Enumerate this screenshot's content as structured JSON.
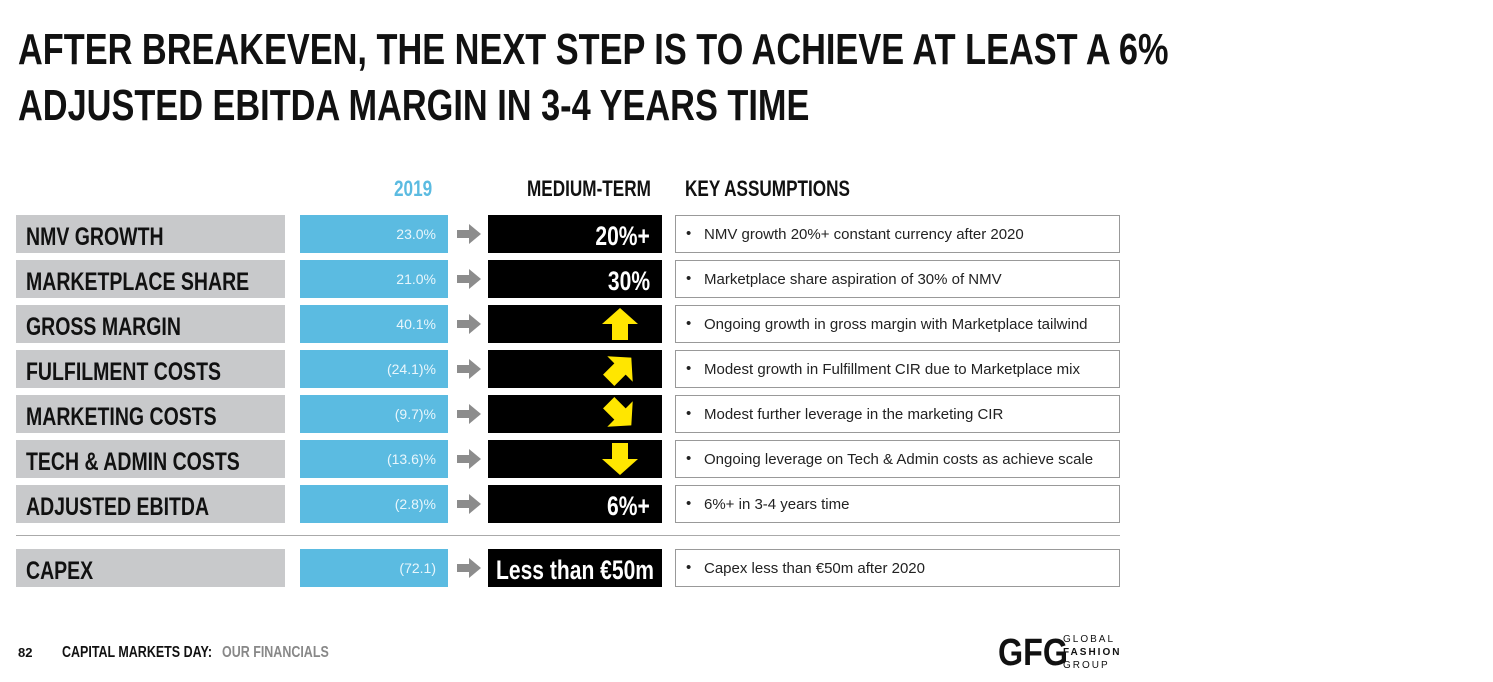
{
  "header": {
    "title_lines": [
      "AFTER BREAKEVEN, THE NEXT STEP IS TO ACHIEVE AT LEAST A 6%",
      "ADJUSTED EBITDA MARGIN IN 3-4 YEARS TIME"
    ]
  },
  "table": {
    "columns": [
      "2019",
      "MEDIUM-TERM",
      "KEY ASSUMPTIONS"
    ],
    "rows": [
      [
        "NMV GROWTH",
        "23.0%",
        "20%+",
        "NMV growth 20%+ constant currency after 2020"
      ],
      [
        "MARKETPLACE SHARE",
        "21.0%",
        "30%",
        "Marketplace share aspiration of 30% of NMV"
      ],
      [
        "GROSS MARGIN",
        "40.1%",
        null,
        "Ongoing growth in gross margin with Marketplace tailwind"
      ],
      [
        "FULFILMENT COSTS",
        "(24.1)%",
        null,
        "Modest growth in Fulfillment CIR due to Marketplace mix"
      ],
      [
        "MARKETING COSTS",
        "(9.7)%",
        null,
        "Modest further leverage in the marketing CIR"
      ],
      [
        "TECH & ADMIN COSTS",
        "(13.6)%",
        null,
        "Ongoing leverage on Tech & Admin costs as achieve scale"
      ],
      [
        "ADJUSTED EBITDA",
        "(2.8)%",
        "6%+",
        "6%+ in 3-4 years time"
      ],
      [
        "CAPEX",
        "(72.1)",
        "Less than €50m",
        "Capex less than €50m after 2020"
      ]
    ]
  },
  "footer": {
    "page": "82",
    "event": "CAPITAL MARKETS DAY:",
    "section": "OUR FINANCIALS",
    "logo": {
      "mark": "GFG",
      "lines": [
        "GLOBAL",
        "FASHION",
        "GROUP"
      ]
    }
  }
}
